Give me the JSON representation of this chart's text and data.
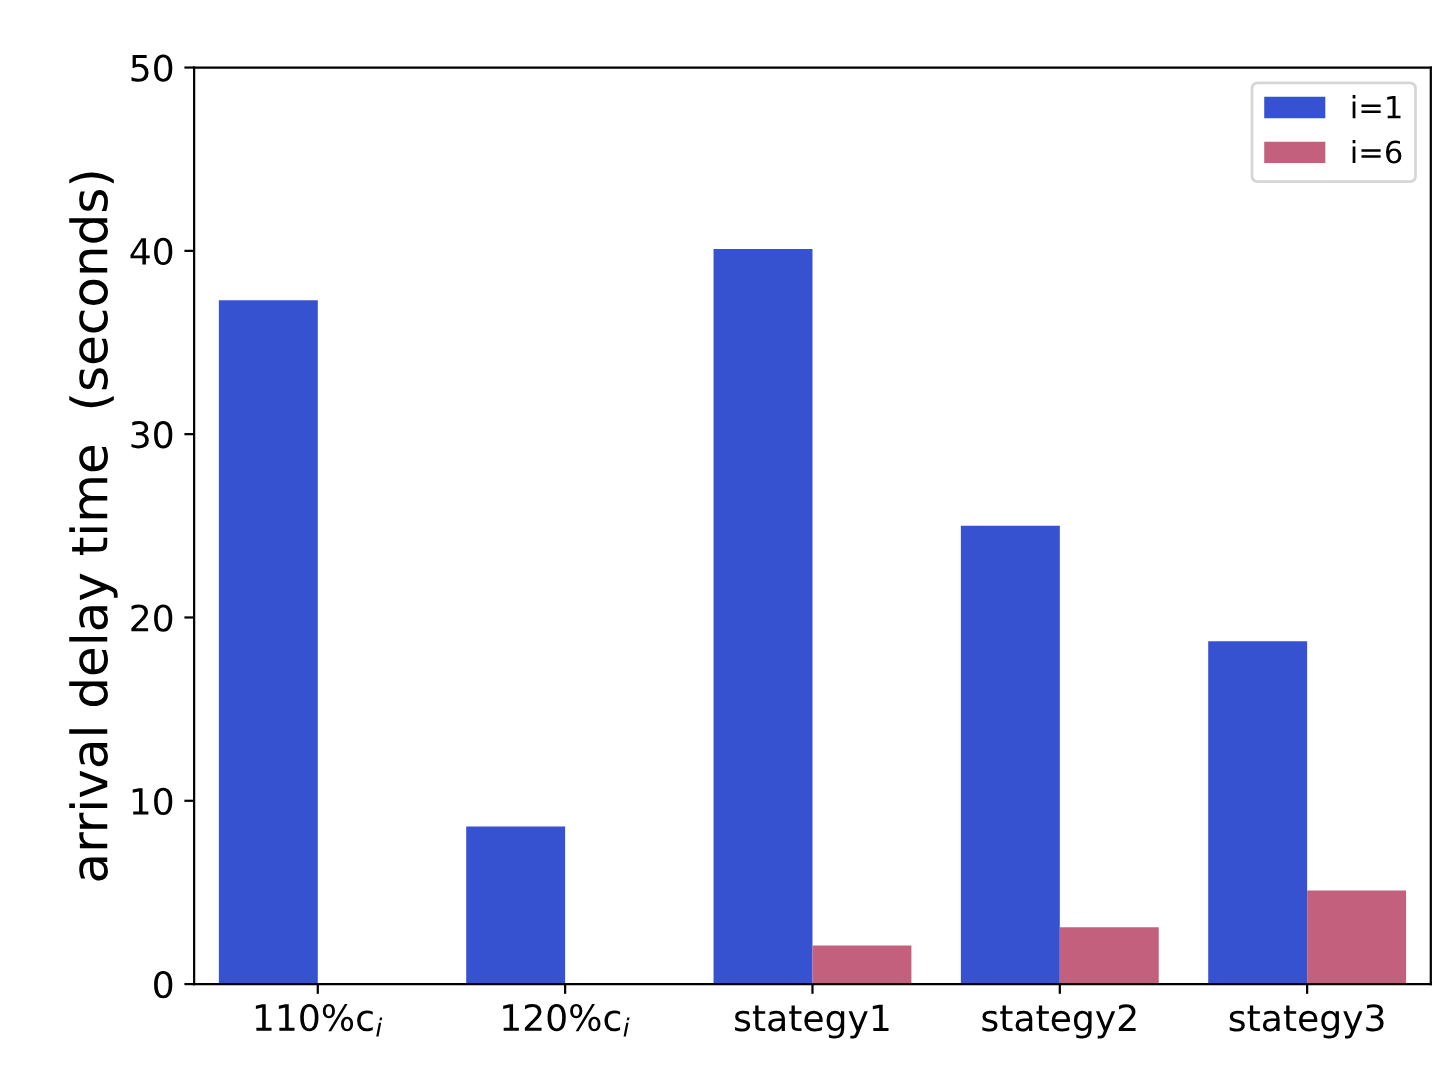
{
  "chart_data": {
    "type": "bar",
    "ylabel": "arrival delay time  (seconds)",
    "categories": [
      "110%c$_{i}$",
      "120%c$_{i}$",
      "stategy1",
      "stategy2",
      "stategy3"
    ],
    "series": [
      {
        "name": "i=1",
        "color": "#3752d0",
        "values": [
          37.3,
          8.6,
          40.1,
          25.0,
          18.7
        ]
      },
      {
        "name": "i=6",
        "color": "#c2607e",
        "values": [
          null,
          null,
          2.1,
          3.1,
          5.1
        ]
      }
    ],
    "ylim": [
      0,
      50
    ],
    "yticks": [
      0,
      10,
      20,
      30,
      40,
      50
    ],
    "grid": false,
    "legend": "top right"
  }
}
